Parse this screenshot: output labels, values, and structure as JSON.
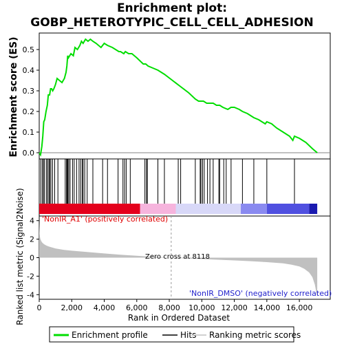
{
  "chart_data": {
    "type": "line",
    "title_line1": "Enrichment plot:",
    "title_line2": "GOBP_HETEROTYPIC_CELL_CELL_ADHESION",
    "panels": {
      "enrichment": {
        "ylabel": "Enrichment score (ES)",
        "ylim": [
          -0.03,
          0.58
        ],
        "yticks": [
          0.0,
          0.1,
          0.2,
          0.3,
          0.4,
          0.5
        ],
        "ytick_labels": [
          "0.0",
          "0.1",
          "0.2",
          "0.3",
          "0.4",
          "0.5"
        ],
        "series": [
          {
            "name": "Enrichment profile",
            "color": "#00dd00",
            "x": [
              0,
              80,
              160,
              220,
              280,
              340,
              420,
              500,
              560,
              640,
              700,
              760,
              830,
              900,
              1000,
              1100,
              1250,
              1400,
              1550,
              1650,
              1700,
              1750,
              1800,
              1950,
              2100,
              2200,
              2350,
              2500,
              2600,
              2700,
              2850,
              3000,
              3150,
              3300,
              3500,
              3800,
              4000,
              4200,
              4500,
              4900,
              5000,
              5200,
              5300,
              5500,
              5700,
              6000,
              6400,
              6550,
              6700,
              7000,
              7300,
              7700,
              8200,
              8700,
              9200,
              9600,
              9800,
              9900,
              10000,
              10100,
              10300,
              10500,
              10700,
              10900,
              11100,
              11300,
              11600,
              11800,
              12000,
              12300,
              12500,
              12800,
              13000,
              13200,
              13500,
              13700,
              13900,
              14000,
              14300,
              14600,
              15000,
              15400,
              15600,
              15700,
              16000,
              16400,
              16800,
              17100
            ],
            "y": [
              0.0,
              -0.01,
              0.03,
              0.08,
              0.15,
              0.16,
              0.2,
              0.23,
              0.28,
              0.28,
              0.31,
              0.31,
              0.3,
              0.31,
              0.33,
              0.36,
              0.35,
              0.34,
              0.36,
              0.39,
              0.42,
              0.47,
              0.46,
              0.48,
              0.47,
              0.51,
              0.5,
              0.52,
              0.54,
              0.53,
              0.55,
              0.54,
              0.55,
              0.54,
              0.53,
              0.51,
              0.53,
              0.52,
              0.51,
              0.49,
              0.49,
              0.48,
              0.49,
              0.48,
              0.48,
              0.46,
              0.43,
              0.43,
              0.42,
              0.41,
              0.4,
              0.38,
              0.35,
              0.32,
              0.29,
              0.26,
              0.25,
              0.25,
              0.25,
              0.25,
              0.24,
              0.24,
              0.24,
              0.23,
              0.23,
              0.22,
              0.21,
              0.22,
              0.22,
              0.21,
              0.2,
              0.19,
              0.18,
              0.17,
              0.16,
              0.15,
              0.14,
              0.15,
              0.14,
              0.12,
              0.1,
              0.08,
              0.06,
              0.08,
              0.07,
              0.05,
              0.02,
              0.0
            ]
          }
        ]
      },
      "hits": {
        "positions": [
          100,
          200,
          260,
          330,
          450,
          520,
          600,
          650,
          720,
          820,
          950,
          1150,
          1600,
          1680,
          1720,
          1760,
          1820,
          1900,
          2050,
          2150,
          2300,
          2450,
          2550,
          2650,
          2700,
          2800,
          2950,
          3300,
          3900,
          4200,
          4850,
          5150,
          5250,
          5350,
          5600,
          6500,
          6600,
          6650,
          7300,
          7700,
          8550,
          8700,
          9600,
          9900,
          9950,
          10050,
          10150,
          10350,
          10500,
          10700,
          11050,
          11100,
          11350,
          11500,
          11800,
          12500,
          13200,
          14000,
          15700
        ]
      },
      "color_band": {
        "segments": [
          {
            "from": 0,
            "to": 6200,
            "color": "#e4001c"
          },
          {
            "from": 6200,
            "to": 8400,
            "color": "#f6b4dd"
          },
          {
            "from": 8400,
            "to": 12400,
            "color": "#d8d8f8"
          },
          {
            "from": 12400,
            "to": 14000,
            "color": "#8a8af0"
          },
          {
            "from": 14000,
            "to": 16600,
            "color": "#5050e0"
          },
          {
            "from": 16600,
            "to": 17100,
            "color": "#1a1ab0"
          }
        ]
      },
      "metric": {
        "ylabel": "Ranked list metric (Signal2Noise)",
        "ylim": [
          -4.5,
          4.5
        ],
        "yticks": [
          -4,
          -2,
          0,
          2,
          4
        ],
        "ytick_labels": [
          "-4",
          "-2",
          "0",
          "2",
          "4"
        ],
        "series": [
          {
            "name": "Ranking metric scores",
            "color": "#c0c0c0",
            "x": [
              0,
              20,
              60,
              120,
              200,
              300,
              450,
              600,
              800,
              1000,
              1500,
              2000,
              3000,
              4000,
              5000,
              6000,
              7000,
              8118,
              9000,
              10000,
              11000,
              12000,
              13000,
              14000,
              15000,
              15500,
              16000,
              16300,
              16600,
              16800,
              16950,
              17050,
              17100
            ],
            "y": [
              3.8,
              2.6,
              2.1,
              1.8,
              1.6,
              1.45,
              1.3,
              1.2,
              1.1,
              1.0,
              0.85,
              0.75,
              0.6,
              0.45,
              0.32,
              0.2,
              0.1,
              0.0,
              -0.08,
              -0.15,
              -0.22,
              -0.3,
              -0.38,
              -0.48,
              -0.62,
              -0.75,
              -0.95,
              -1.2,
              -1.6,
              -2.1,
              -2.9,
              -3.8,
              -4.3
            ]
          }
        ],
        "zero_cross_label": "Zero cross at 8118",
        "zero_cross_x": 8118,
        "pos_label": "'NonIR_A1' (positively correlated)",
        "neg_label": "'NonIR_DMSO' (negatively correlated)"
      }
    },
    "xlabel": "Rank in Ordered Dataset",
    "xlim": [
      0,
      17900
    ],
    "xticks": [
      0,
      2000,
      4000,
      6000,
      8000,
      10000,
      12000,
      14000,
      16000
    ],
    "xtick_labels": [
      "0",
      "2,000",
      "4,000",
      "6,000",
      "8,000",
      "10,000",
      "12,000",
      "14,000",
      "16,000"
    ],
    "legend": {
      "placement": "bottom",
      "items": [
        {
          "label": "Enrichment profile",
          "color": "#00dd00"
        },
        {
          "label": "Hits",
          "color": "#000000"
        },
        {
          "label": "Ranking metric scores",
          "color": "#c0c0c0"
        }
      ]
    }
  }
}
